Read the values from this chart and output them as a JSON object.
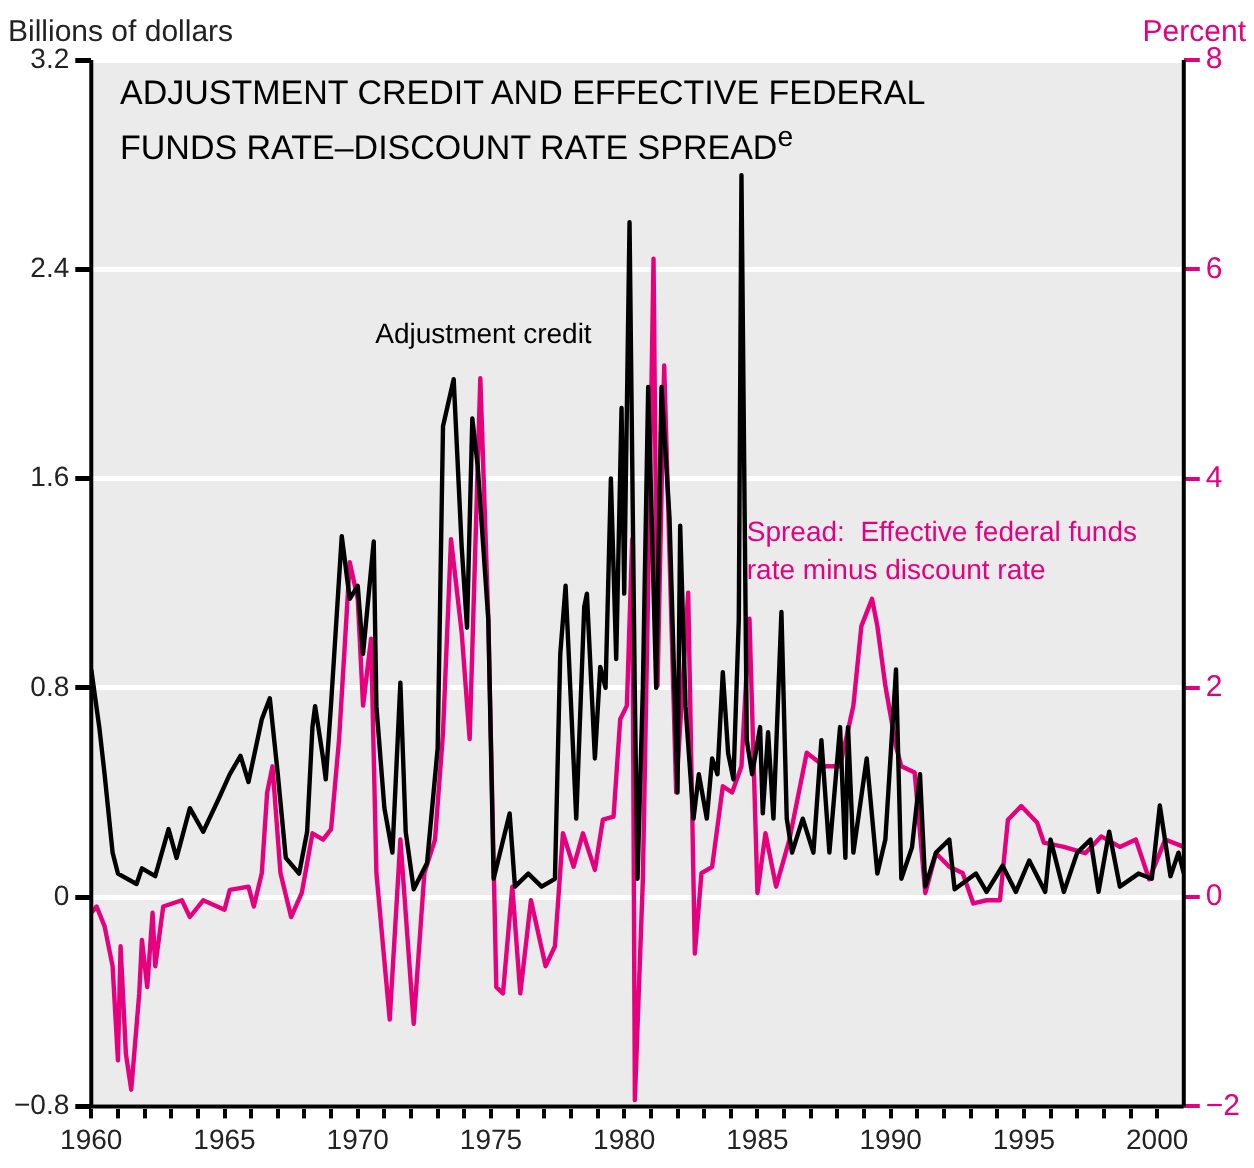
{
  "chart_data": {
    "type": "line",
    "title": "ADJUSTMENT CREDIT AND EFFECTIVE FEDERAL FUNDS RATE–DISCOUNT RATE SPREAD$^{e}$",
    "ylabel": "Billions of dollars",
    "y2label": "Percent",
    "xlim": [
      1960,
      2001
    ],
    "xticks": [
      1960,
      {
        "value": 1961,
        "label": null
      },
      {
        "value": 1962,
        "label": null
      },
      {
        "value": 1963,
        "label": null
      },
      {
        "value": 1964,
        "label": null
      },
      1965,
      {
        "value": 1966,
        "label": null
      },
      {
        "value": 1967,
        "label": null
      },
      {
        "value": 1968,
        "label": null
      },
      {
        "value": 1969,
        "label": null
      },
      1970,
      {
        "value": 1971,
        "label": null
      },
      {
        "value": 1972,
        "label": null
      },
      {
        "value": 1973,
        "label": null
      },
      {
        "value": 1974,
        "label": null
      },
      1975,
      {
        "value": 1976,
        "label": null
      },
      {
        "value": 1977,
        "label": null
      },
      {
        "value": 1978,
        "label": null
      },
      {
        "value": 1979,
        "label": null
      },
      1980,
      {
        "value": 1981,
        "label": null
      },
      {
        "value": 1982,
        "label": null
      },
      {
        "value": 1983,
        "label": null
      },
      {
        "value": 1984,
        "label": null
      },
      1985,
      {
        "value": 1986,
        "label": null
      },
      {
        "value": 1987,
        "label": null
      },
      {
        "value": 1988,
        "label": null
      },
      {
        "value": 1989,
        "label": null
      },
      1990,
      {
        "value": 1991,
        "label": null
      },
      {
        "value": 1992,
        "label": null
      },
      {
        "value": 1993,
        "label": null
      },
      {
        "value": 1994,
        "label": null
      },
      1995,
      {
        "value": 1996,
        "label": null
      },
      {
        "value": 1997,
        "label": null
      },
      {
        "value": 1998,
        "label": null
      },
      {
        "value": 1999,
        "label": null
      },
      2000
    ],
    "ylim": [
      -0.8,
      3.2
    ],
    "yticks": [
      {
        "value": -0.8,
        "label": "−0.8"
      },
      0,
      0.8,
      1.6,
      2.4,
      3.2
    ],
    "y2lim": [
      -2,
      8
    ],
    "y2ticks": [
      {
        "value": -2,
        "label": "−2"
      },
      0,
      2,
      4,
      6,
      8
    ],
    "grid": "y",
    "legend": false,
    "marker": "none",
    "line_style": "solid",
    "series": [
      {
        "name": "Adjustment credit",
        "color": "#000000",
        "x": [
          1960.0,
          1960.3,
          1960.5,
          1960.8,
          1961.0,
          1961.7,
          1961.9,
          1962.4,
          1962.9,
          1963.2,
          1963.7,
          1964.2,
          1964.8,
          1965.2,
          1965.6,
          1965.9,
          1966.4,
          1966.7,
          1967.0,
          1967.3,
          1967.8,
          1968.1,
          1968.3,
          1968.4,
          1968.7,
          1968.8,
          1969.0,
          1969.4,
          1969.7,
          1970.0,
          1970.2,
          1970.6,
          1970.7,
          1971.0,
          1971.3,
          1971.6,
          1971.8,
          1972.1,
          1972.6,
          1973.0,
          1973.2,
          1973.6,
          1973.9,
          1974.1,
          1974.3,
          1974.5,
          1974.9,
          1975.1,
          1975.7,
          1975.9,
          1976.4,
          1976.9,
          1977.4,
          1977.6,
          1977.8,
          1978.2,
          1978.5,
          1978.6,
          1978.9,
          1979.1,
          1979.3,
          1979.5,
          1979.7,
          1979.9,
          1980.0,
          1980.2,
          1980.4,
          1980.5,
          1980.7,
          1980.9,
          1981.2,
          1981.4,
          1981.7,
          1982.0,
          1982.1,
          1982.3,
          1982.6,
          1982.8,
          1983.1,
          1983.3,
          1983.5,
          1983.7,
          1983.9,
          1984.1,
          1984.3,
          1984.4,
          1984.6,
          1984.8,
          1985.1,
          1985.2,
          1985.4,
          1985.6,
          1985.9,
          1986.1,
          1986.3,
          1986.7,
          1987.1,
          1987.4,
          1987.7,
          1988.1,
          1988.3,
          1988.4,
          1988.6,
          1989.1,
          1989.5,
          1989.8,
          1990.2,
          1990.4,
          1990.8,
          1991.1,
          1991.3,
          1991.7,
          1992.2,
          1992.4,
          1993.2,
          1993.6,
          1994.2,
          1994.7,
          1995.2,
          1995.8,
          1996.0,
          1996.5,
          1997.0,
          1997.5,
          1997.8,
          1998.2,
          1998.6,
          1999.3,
          1999.8,
          2000.1,
          2000.5,
          2000.8,
          2001.0
        ],
        "values": [
          0.87,
          0.65,
          0.47,
          0.17,
          0.09,
          0.05,
          0.11,
          0.08,
          0.26,
          0.15,
          0.34,
          0.25,
          0.38,
          0.47,
          0.54,
          0.44,
          0.68,
          0.76,
          0.47,
          0.15,
          0.09,
          0.25,
          0.65,
          0.73,
          0.53,
          0.45,
          0.74,
          1.38,
          1.14,
          1.19,
          0.93,
          1.36,
          0.73,
          0.34,
          0.17,
          0.82,
          0.25,
          0.03,
          0.13,
          0.57,
          1.8,
          1.98,
          1.34,
          1.03,
          1.83,
          1.65,
          1.06,
          0.07,
          0.32,
          0.04,
          0.09,
          0.04,
          0.07,
          0.93,
          1.19,
          0.3,
          1.11,
          1.16,
          0.53,
          0.88,
          0.8,
          1.6,
          0.91,
          1.87,
          1.16,
          2.58,
          0.76,
          0.07,
          0.8,
          1.95,
          0.8,
          1.95,
          1.45,
          0.4,
          1.42,
          0.73,
          0.3,
          0.47,
          0.3,
          0.53,
          0.47,
          0.86,
          0.55,
          0.45,
          1.06,
          2.76,
          0.6,
          0.47,
          0.65,
          0.32,
          0.63,
          0.3,
          1.09,
          0.3,
          0.17,
          0.3,
          0.17,
          0.6,
          0.17,
          0.65,
          0.15,
          0.65,
          0.17,
          0.53,
          0.09,
          0.22,
          0.87,
          0.07,
          0.19,
          0.47,
          0.04,
          0.17,
          0.22,
          0.03,
          0.09,
          0.02,
          0.12,
          0.02,
          0.14,
          0.02,
          0.22,
          0.02,
          0.17,
          0.22,
          0.02,
          0.25,
          0.04,
          0.09,
          0.07,
          0.35,
          0.08,
          0.17,
          0.09
        ]
      },
      {
        "name": "Spread:  Effective federal funds rate minus discount rate",
        "color": "#e6007e",
        "axis": "y2",
        "x": [
          1960.0,
          1960.2,
          1960.5,
          1960.8,
          1961.0,
          1961.1,
          1961.3,
          1961.5,
          1961.8,
          1961.9,
          1962.1,
          1962.3,
          1962.4,
          1962.7,
          1963.4,
          1963.7,
          1964.2,
          1965.0,
          1965.2,
          1965.9,
          1966.1,
          1966.4,
          1966.6,
          1966.8,
          1967.1,
          1967.5,
          1967.9,
          1968.3,
          1968.7,
          1969.0,
          1969.3,
          1969.7,
          1970.0,
          1970.2,
          1970.5,
          1970.7,
          1971.2,
          1971.6,
          1972.1,
          1972.5,
          1972.9,
          1973.2,
          1973.5,
          1973.9,
          1974.2,
          1974.6,
          1974.9,
          1975.2,
          1975.45,
          1975.8,
          1976.1,
          1976.5,
          1977.05,
          1977.4,
          1977.7,
          1978.1,
          1978.45,
          1978.9,
          1979.2,
          1979.6,
          1979.85,
          1980.1,
          1980.3,
          1980.4,
          1980.7,
          1980.9,
          1981.1,
          1981.25,
          1981.5,
          1981.7,
          1981.95,
          1982.4,
          1982.65,
          1982.9,
          1983.3,
          1983.7,
          1984.05,
          1984.4,
          1984.7,
          1985.0,
          1985.3,
          1985.7,
          1986.2,
          1986.85,
          1987.5,
          1988.1,
          1988.6,
          1988.9,
          1989.3,
          1989.5,
          1989.8,
          1990.2,
          1990.4,
          1990.9,
          1991.3,
          1991.7,
          1992.2,
          1992.7,
          1993.1,
          1993.6,
          1994.1,
          1994.4,
          1994.9,
          1995.5,
          1995.75,
          1996.5,
          1997.3,
          1997.9,
          1998.6,
          1999.2,
          1999.7,
          2000.3,
          2001.0
        ],
        "values": [
          -0.15,
          -0.09,
          -0.28,
          -0.66,
          -1.56,
          -0.47,
          -1.5,
          -1.84,
          -0.92,
          -0.41,
          -0.86,
          -0.15,
          -0.66,
          -0.09,
          -0.03,
          -0.19,
          -0.03,
          -0.12,
          0.07,
          0.1,
          -0.09,
          0.23,
          1.0,
          1.25,
          0.23,
          -0.19,
          0.04,
          0.61,
          0.55,
          0.65,
          1.51,
          3.2,
          2.85,
          1.83,
          2.47,
          0.23,
          -1.17,
          0.55,
          -1.21,
          0.23,
          0.55,
          1.57,
          3.42,
          2.53,
          1.51,
          4.96,
          2.66,
          -0.86,
          -0.92,
          0.1,
          -0.92,
          -0.03,
          -0.66,
          -0.47,
          0.61,
          0.29,
          0.61,
          0.26,
          0.74,
          0.77,
          1.7,
          1.83,
          3.42,
          -1.94,
          0.17,
          2.98,
          6.1,
          2.02,
          5.08,
          3.29,
          1.0,
          2.91,
          -0.54,
          0.23,
          0.29,
          1.06,
          1.0,
          1.25,
          2.66,
          0.04,
          0.61,
          0.1,
          0.55,
          1.38,
          1.25,
          1.25,
          1.83,
          2.59,
          2.85,
          2.59,
          2.02,
          1.44,
          1.25,
          1.19,
          0.04,
          0.42,
          0.29,
          0.23,
          -0.06,
          -0.03,
          -0.03,
          0.74,
          0.87,
          0.71,
          0.52,
          0.48,
          0.42,
          0.58,
          0.48,
          0.55,
          0.17,
          0.55,
          0.48
        ]
      }
    ]
  }
}
